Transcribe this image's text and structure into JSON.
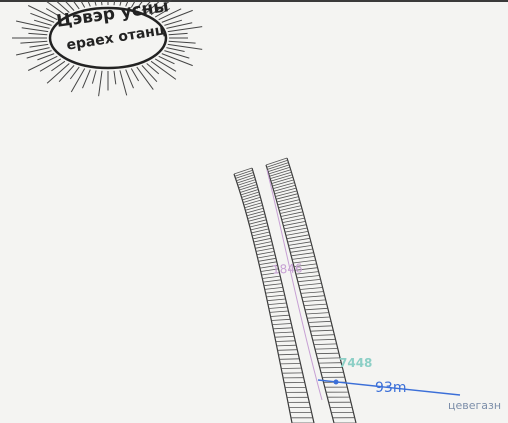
{
  "sun_label": {
    "line1": "Цэвэр усны",
    "line2": "ераех отанц"
  },
  "route_code_purple": "1846",
  "route_code_green": "7448",
  "distance_label": "93m",
  "edge_label": "цевегазн",
  "colors": {
    "ink": "#3a3a3a",
    "hatch": "#555555",
    "purple": "#c7a0d4",
    "green": "#8ccfc6",
    "blue": "#3b6fd8"
  }
}
